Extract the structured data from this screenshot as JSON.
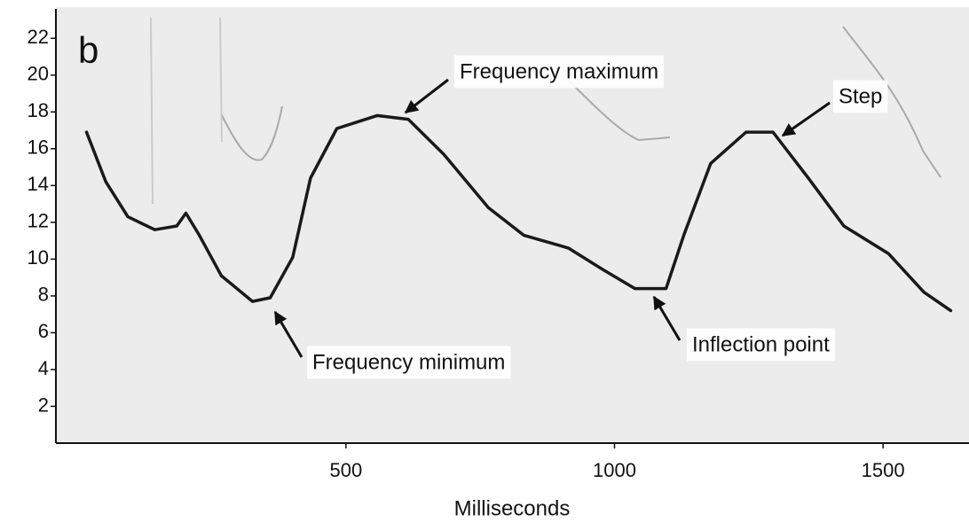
{
  "chart_data": {
    "type": "line",
    "panel_label": "b",
    "x_label": "Milliseconds",
    "annotations": [
      "Frequency maximum",
      "Step",
      "Frequency minimum",
      "Inflection point"
    ],
    "x": [
      17,
      53,
      94,
      144,
      185,
      202,
      227,
      268,
      326,
      359,
      401,
      434,
      483,
      558,
      616,
      682,
      765,
      831,
      914,
      980,
      1038,
      1096,
      1129,
      1179,
      1245,
      1295,
      1361,
      1427,
      1510,
      1576,
      1626
    ],
    "values": [
      16.9,
      14.2,
      12.3,
      11.6,
      11.8,
      12.5,
      11.3,
      9.1,
      7.7,
      7.9,
      10.1,
      14.4,
      17.1,
      17.8,
      17.6,
      15.7,
      12.8,
      11.3,
      10.6,
      9.4,
      8.4,
      8.4,
      11.3,
      15.2,
      16.9,
      16.9,
      14.4,
      11.8,
      10.3,
      8.2,
      7.2
    ],
    "color": "#1a1a1a",
    "xlim": [
      -40,
      1660
    ],
    "ylim": [
      0,
      23.6
    ],
    "xticks": [
      500,
      1000,
      1500
    ],
    "yticks": [
      2,
      4,
      6,
      8,
      10,
      12,
      14,
      16,
      18,
      20,
      22
    ]
  }
}
